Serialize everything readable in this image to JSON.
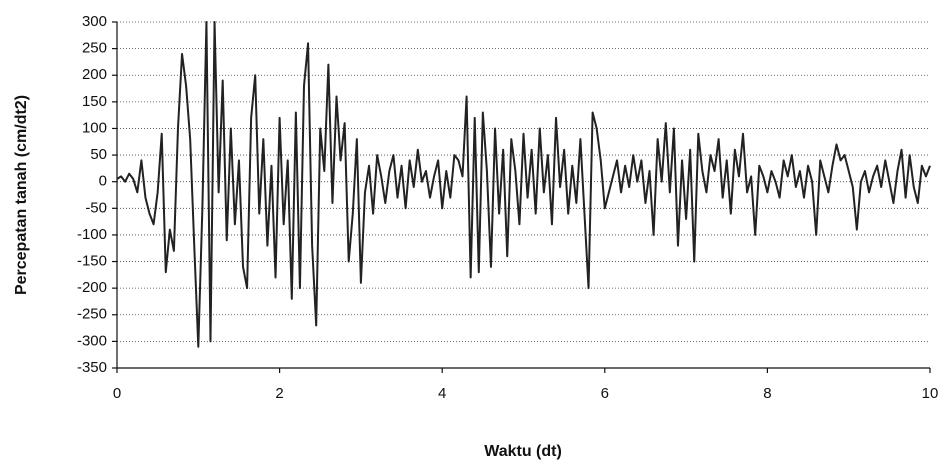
{
  "chart_data": {
    "type": "line",
    "x_label": "Waktu (dt)",
    "y_label": "Percepatan tanah (cm/dt2)",
    "color": "#222222",
    "grid": true,
    "xlim": [
      0,
      10
    ],
    "xticks": [
      0,
      2,
      4,
      6,
      8,
      10
    ],
    "ylim": [
      -350,
      300
    ],
    "yticks": [
      -350,
      -300,
      -250,
      -200,
      -150,
      -100,
      -50,
      0,
      50,
      100,
      150,
      200,
      250,
      300
    ],
    "x": [
      0,
      0.05,
      0.1,
      0.15,
      0.2,
      0.25,
      0.3,
      0.35,
      0.4,
      0.45,
      0.5,
      0.55,
      0.6,
      0.65,
      0.7,
      0.75,
      0.8,
      0.85,
      0.9,
      0.95,
      1,
      1.05,
      1.1,
      1.15,
      1.2,
      1.25,
      1.3,
      1.35,
      1.4,
      1.45,
      1.5,
      1.55,
      1.6,
      1.65,
      1.7,
      1.75,
      1.8,
      1.85,
      1.9,
      1.95,
      2,
      2.05,
      2.1,
      2.15,
      2.2,
      2.25,
      2.3,
      2.35,
      2.4,
      2.45,
      2.5,
      2.55,
      2.6,
      2.65,
      2.7,
      2.75,
      2.8,
      2.85,
      2.9,
      2.95,
      3,
      3.05,
      3.1,
      3.15,
      3.2,
      3.25,
      3.3,
      3.35,
      3.4,
      3.45,
      3.5,
      3.55,
      3.6,
      3.65,
      3.7,
      3.75,
      3.8,
      3.85,
      3.9,
      3.95,
      4,
      4.05,
      4.1,
      4.15,
      4.2,
      4.25,
      4.3,
      4.35,
      4.4,
      4.45,
      4.5,
      4.55,
      4.6,
      4.65,
      4.7,
      4.75,
      4.8,
      4.85,
      4.9,
      4.95,
      5,
      5.05,
      5.1,
      5.15,
      5.2,
      5.25,
      5.3,
      5.35,
      5.4,
      5.45,
      5.5,
      5.55,
      5.6,
      5.65,
      5.7,
      5.75,
      5.8,
      5.85,
      5.9,
      5.95,
      6,
      6.05,
      6.1,
      6.15,
      6.2,
      6.25,
      6.3,
      6.35,
      6.4,
      6.45,
      6.5,
      6.55,
      6.6,
      6.65,
      6.7,
      6.75,
      6.8,
      6.85,
      6.9,
      6.95,
      7,
      7.05,
      7.1,
      7.15,
      7.2,
      7.25,
      7.3,
      7.35,
      7.4,
      7.45,
      7.5,
      7.55,
      7.6,
      7.65,
      7.7,
      7.75,
      7.8,
      7.85,
      7.9,
      7.95,
      8,
      8.05,
      8.1,
      8.15,
      8.2,
      8.25,
      8.3,
      8.35,
      8.4,
      8.45,
      8.5,
      8.55,
      8.6,
      8.65,
      8.7,
      8.75,
      8.8,
      8.85,
      8.9,
      8.95,
      9,
      9.05,
      9.1,
      9.15,
      9.2,
      9.25,
      9.3,
      9.35,
      9.4,
      9.45,
      9.5,
      9.55,
      9.6,
      9.65,
      9.7,
      9.75,
      9.8,
      9.85,
      9.9,
      9.95,
      10
    ],
    "values": [
      5,
      10,
      0,
      15,
      5,
      -20,
      40,
      -30,
      -60,
      -80,
      -20,
      90,
      -170,
      -90,
      -130,
      100,
      240,
      180,
      80,
      -120,
      -310,
      -50,
      300,
      -300,
      300,
      -20,
      190,
      -110,
      100,
      -80,
      40,
      -160,
      -200,
      120,
      200,
      -60,
      80,
      -120,
      30,
      -180,
      120,
      -80,
      40,
      -220,
      130,
      -200,
      180,
      260,
      -120,
      -270,
      100,
      20,
      220,
      -40,
      160,
      40,
      110,
      -150,
      -60,
      80,
      -190,
      -20,
      30,
      -60,
      50,
      10,
      -40,
      20,
      50,
      -30,
      30,
      -50,
      40,
      -10,
      60,
      0,
      20,
      -30,
      10,
      40,
      -50,
      20,
      -30,
      50,
      40,
      10,
      160,
      -180,
      120,
      -170,
      130,
      20,
      -160,
      100,
      -60,
      60,
      -140,
      80,
      20,
      -80,
      90,
      -30,
      60,
      -60,
      100,
      -20,
      50,
      -80,
      120,
      -10,
      60,
      -60,
      30,
      -40,
      80,
      -60,
      -200,
      130,
      100,
      40,
      -50,
      -20,
      10,
      40,
      -20,
      30,
      -10,
      50,
      0,
      40,
      -40,
      20,
      -100,
      80,
      0,
      110,
      -20,
      100,
      -120,
      40,
      -70,
      60,
      -150,
      90,
      20,
      -20,
      50,
      20,
      80,
      -30,
      40,
      -60,
      60,
      10,
      90,
      -20,
      10,
      -100,
      30,
      10,
      -20,
      20,
      0,
      -30,
      40,
      10,
      50,
      -10,
      20,
      -30,
      30,
      0,
      -100,
      40,
      10,
      -20,
      30,
      70,
      40,
      50,
      20,
      -10,
      -90,
      0,
      20,
      -20,
      10,
      30,
      -10,
      40,
      0,
      -40,
      20,
      60,
      -30,
      50,
      -10,
      -40,
      30,
      10,
      30
    ]
  }
}
